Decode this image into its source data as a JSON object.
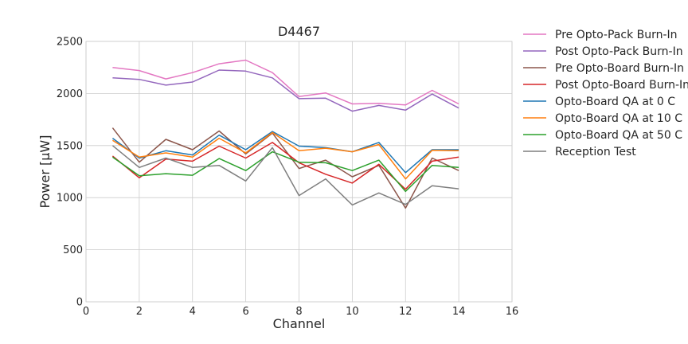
{
  "chart_data": {
    "type": "line",
    "title": "D4467",
    "xlabel": "Channel",
    "ylabel": "Power [μW]",
    "xlim": [
      0,
      16
    ],
    "ylim": [
      0,
      2500
    ],
    "xticks": [
      "0",
      "2",
      "4",
      "6",
      "8",
      "10",
      "12",
      "14",
      "16"
    ],
    "yticks": [
      "0",
      "500",
      "1000",
      "1500",
      "2000",
      "2500"
    ],
    "grid": true,
    "legend_position": "outside-right",
    "x": [
      1,
      2,
      3,
      4,
      5,
      6,
      7,
      8,
      9,
      10,
      11,
      12,
      13,
      14
    ],
    "series": [
      {
        "name": "Pre Opto-Pack Burn-In",
        "color": "#e377c2",
        "values": [
          2250,
          2220,
          2140,
          2200,
          2285,
          2320,
          2200,
          1970,
          2005,
          1900,
          1905,
          1890,
          2030,
          1900
        ]
      },
      {
        "name": "Post Opto-Pack Burn-In",
        "color": "#9467bd",
        "values": [
          2150,
          2135,
          2080,
          2110,
          2225,
          2215,
          2150,
          1950,
          1955,
          1830,
          1885,
          1840,
          1995,
          1860
        ]
      },
      {
        "name": "Pre Opto-Board Burn-In",
        "color": "#8c564b",
        "values": [
          1670,
          1340,
          1560,
          1460,
          1640,
          1420,
          1620,
          1280,
          1360,
          1200,
          1310,
          900,
          1380,
          1260
        ]
      },
      {
        "name": "Post Opto-Board Burn-In",
        "color": "#d62728",
        "values": [
          1400,
          1190,
          1370,
          1350,
          1495,
          1380,
          1530,
          1335,
          1225,
          1140,
          1320,
          1080,
          1350,
          1390
        ]
      },
      {
        "name": "Opto-Board QA at 0 C",
        "color": "#1f77b4",
        "values": [
          1570,
          1380,
          1450,
          1410,
          1600,
          1460,
          1635,
          1495,
          1480,
          1440,
          1530,
          1240,
          1460,
          1460
        ]
      },
      {
        "name": "Opto-Board QA at 10 C",
        "color": "#ff7f0e",
        "values": [
          1550,
          1390,
          1430,
          1390,
          1570,
          1430,
          1625,
          1450,
          1475,
          1440,
          1510,
          1180,
          1455,
          1450
        ]
      },
      {
        "name": "Opto-Board QA at 50 C",
        "color": "#2ca02c",
        "values": [
          1390,
          1210,
          1230,
          1215,
          1375,
          1260,
          1440,
          1340,
          1335,
          1260,
          1360,
          1060,
          1310,
          1290
        ]
      },
      {
        "name": "Reception Test",
        "color": "#7f7f7f",
        "values": [
          1500,
          1290,
          1380,
          1290,
          1310,
          1160,
          1480,
          1020,
          1180,
          930,
          1045,
          935,
          1115,
          1085
        ]
      }
    ]
  }
}
